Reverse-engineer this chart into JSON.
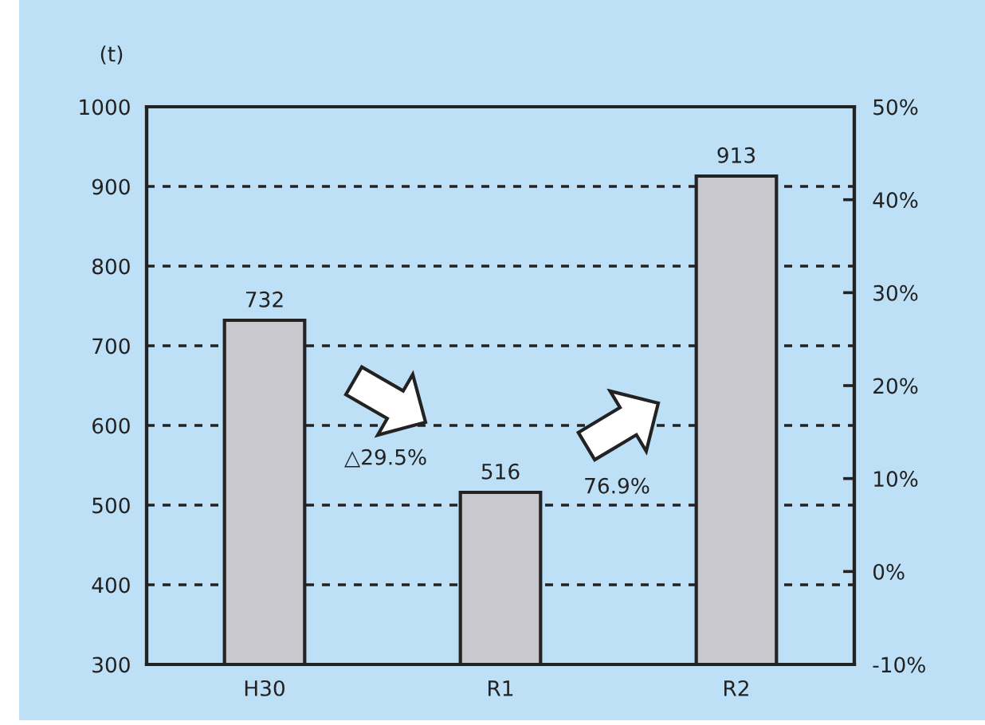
{
  "chart_data": {
    "type": "bar",
    "categories": [
      "H30",
      "R1",
      "R2"
    ],
    "values": [
      732,
      516,
      913
    ],
    "color": "#c8c8ce",
    "data_labels": true,
    "ylabel": "(t)",
    "ylim": [
      300,
      1000
    ],
    "yticks": [
      300,
      400,
      500,
      600,
      700,
      800,
      900,
      1000
    ],
    "y2lim": [
      -10,
      50
    ],
    "y2ticks": [
      {
        "value": -10,
        "label": "-10%"
      },
      {
        "value": 0,
        "label": "0%"
      },
      {
        "value": 10,
        "label": "10%"
      },
      {
        "value": 20,
        "label": "20%"
      },
      {
        "value": 30,
        "label": "30%"
      },
      {
        "value": 40,
        "label": "40%"
      },
      {
        "value": 50,
        "label": "50%"
      }
    ],
    "grid": "y",
    "annotations": [
      "△29.5%",
      "76.9%"
    ]
  }
}
